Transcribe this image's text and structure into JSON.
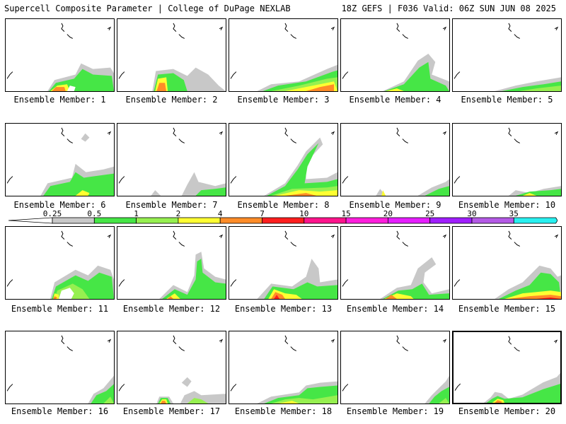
{
  "header": {
    "left": "Supercell Composite Parameter | College of DuPage NEXLAB",
    "right": "18Z GEFS | F036 Valid: 06Z SUN JUN 08 2025"
  },
  "members": [
    {
      "label": "Ensemble Member: 1"
    },
    {
      "label": "Ensemble Member: 2"
    },
    {
      "label": "Ensemble Member: 3"
    },
    {
      "label": "Ensemble Member: 4"
    },
    {
      "label": "Ensemble Member: 5"
    },
    {
      "label": "Ensemble Member: 6"
    },
    {
      "label": "Ensemble Member: 7"
    },
    {
      "label": "Ensemble Member: 8"
    },
    {
      "label": "Ensemble Member: 9"
    },
    {
      "label": "Ensemble Member: 10"
    },
    {
      "label": "Ensemble Member: 11"
    },
    {
      "label": "Ensemble Member: 12"
    },
    {
      "label": "Ensemble Member: 13"
    },
    {
      "label": "Ensemble Member: 14"
    },
    {
      "label": "Ensemble Member: 15"
    },
    {
      "label": "Ensemble Member: 16"
    },
    {
      "label": "Ensemble Member: 17"
    },
    {
      "label": "Ensemble Member: 18"
    },
    {
      "label": "Ensemble Member: 19"
    },
    {
      "label": "Ensemble Member: 20",
      "selected": true
    }
  ],
  "colorbar": {
    "labels": [
      "0.25",
      "0.5",
      "1",
      "2",
      "4",
      "7",
      "10",
      "15",
      "20",
      "25",
      "30",
      "35"
    ],
    "colors": [
      "#c8c8c8",
      "#46e646",
      "#96f050",
      "#ffff32",
      "#ff8c28",
      "#ff1e1e",
      "#ff148c",
      "#ff1edc",
      "#e61eff",
      "#a01eff",
      "#b45ae6",
      "#28f0f0"
    ]
  }
}
